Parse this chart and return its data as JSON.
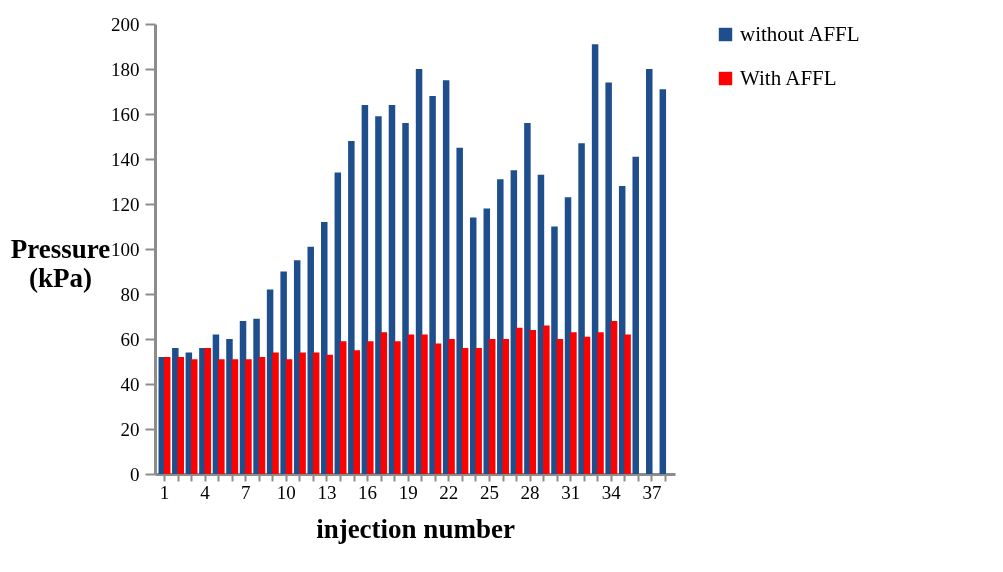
{
  "chart_data": {
    "type": "bar",
    "xlabel": "injection number",
    "ylabel": "Pressure (kPa)",
    "categories": [
      "1",
      null,
      null,
      "4",
      null,
      null,
      "7",
      null,
      null,
      "10",
      null,
      null,
      "13",
      null,
      null,
      "16",
      null,
      null,
      "19",
      null,
      null,
      "22",
      null,
      null,
      "25",
      null,
      null,
      "28",
      null,
      null,
      "31",
      null,
      null,
      "34",
      null,
      null,
      "37",
      null
    ],
    "series": [
      {
        "name": "without AFFL",
        "color": "#1f4e8c",
        "values": [
          52,
          56,
          54,
          56,
          62,
          60,
          68,
          69,
          82,
          90,
          95,
          101,
          112,
          134,
          148,
          164,
          159,
          164,
          156,
          180,
          168,
          175,
          145,
          114,
          118,
          131,
          135,
          156,
          133,
          110,
          123,
          147,
          191,
          174,
          128,
          141,
          180,
          171
        ]
      },
      {
        "name": "With AFFL",
        "color": "#ff0000",
        "values": [
          52,
          52,
          51,
          56,
          51,
          51,
          51,
          52,
          54,
          51,
          54,
          54,
          53,
          59,
          55,
          59,
          63,
          59,
          62,
          62,
          58,
          60,
          56,
          56,
          60,
          60,
          65,
          64,
          66,
          60,
          63,
          61,
          63,
          68,
          62,
          null,
          null,
          null
        ]
      }
    ],
    "ylim": [
      0,
      200
    ],
    "yticks": [
      0,
      20,
      40,
      60,
      80,
      100,
      120,
      140,
      160,
      180,
      200
    ],
    "grid": false,
    "legend": "right"
  }
}
